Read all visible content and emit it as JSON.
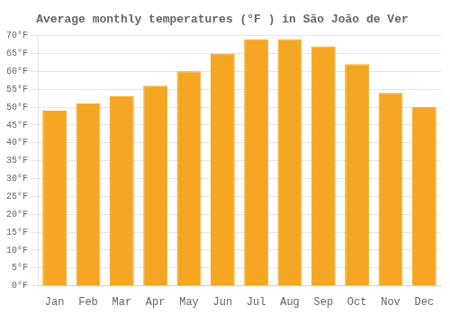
{
  "chart_data": {
    "type": "bar",
    "title": "Average monthly temperatures (°F ) in São João de Ver",
    "categories": [
      "Jan",
      "Feb",
      "Mar",
      "Apr",
      "May",
      "Jun",
      "Jul",
      "Aug",
      "Sep",
      "Oct",
      "Nov",
      "Dec"
    ],
    "values": [
      49,
      51,
      53,
      56,
      60,
      65,
      69,
      69,
      67,
      62,
      54,
      50
    ],
    "color": "#F5A623",
    "ylim": [
      0,
      70
    ],
    "yticks": [
      {
        "value": 0,
        "label": "0°F"
      },
      {
        "value": 5,
        "label": "5°F"
      },
      {
        "value": 10,
        "label": "10°F"
      },
      {
        "value": 15,
        "label": "15°F"
      },
      {
        "value": 20,
        "label": "20°F"
      },
      {
        "value": 25,
        "label": "25°F"
      },
      {
        "value": 30,
        "label": "30°F"
      },
      {
        "value": 35,
        "label": "35°F"
      },
      {
        "value": 40,
        "label": "40°F"
      },
      {
        "value": 45,
        "label": "45°F"
      },
      {
        "value": 50,
        "label": "50°F"
      },
      {
        "value": 55,
        "label": "55°F"
      },
      {
        "value": 60,
        "label": "60°F"
      },
      {
        "value": 65,
        "label": "65°F"
      },
      {
        "value": 70,
        "label": "70°F"
      }
    ],
    "grid": true
  }
}
